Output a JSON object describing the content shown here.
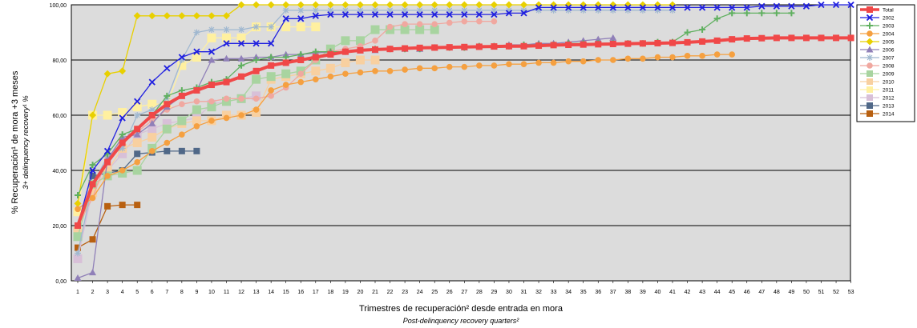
{
  "chart_data": {
    "type": "line",
    "ylabel_es": "% Recuperación¹ de mora +3 meses",
    "ylabel_en": "3+ delinquency recovery¹ %",
    "xlabel_es": "Trimestres de recuperación² desde entrada en mora",
    "xlabel_en": "Post-delinquency recovery quarters²",
    "ylim": [
      0,
      100
    ],
    "yticks": [
      "0,00",
      "20,00",
      "40,00",
      "60,00",
      "80,00",
      "100,00"
    ],
    "xlim": [
      1,
      53
    ],
    "grid": "horizontal",
    "legend_position": "right",
    "series": [
      {
        "name": "Total",
        "color": "#f04848",
        "marker": "square",
        "width": 4,
        "values": [
          20,
          35,
          43,
          50,
          55,
          60,
          64,
          67,
          69,
          71,
          72,
          74,
          76,
          78,
          79,
          80,
          81,
          82,
          83,
          83.5,
          83.8,
          84,
          84.2,
          84.4,
          84.5,
          84.6,
          84.7,
          84.8,
          84.9,
          85,
          85,
          85.2,
          85.4,
          85.5,
          85.6,
          85.7,
          85.8,
          85.9,
          86,
          86.1,
          86.2,
          86.4,
          86.7,
          87,
          87.5,
          87.8,
          87.9,
          88,
          88,
          88,
          88,
          88,
          88
        ]
      },
      {
        "name": "2002",
        "color": "#2020e0",
        "marker": "x",
        "width": 1.3,
        "values": [
          20,
          40,
          47,
          59,
          65,
          72,
          77,
          81,
          83,
          83,
          86,
          86,
          86,
          86,
          95,
          95,
          96,
          96.5,
          96.5,
          96.5,
          96.5,
          96.5,
          96.5,
          96.5,
          96.5,
          96.5,
          96.5,
          96.5,
          96.5,
          97,
          97,
          99,
          99,
          99,
          99,
          99,
          99,
          99,
          99,
          99,
          99,
          99,
          99,
          99,
          99,
          99,
          99.5,
          99.5,
          99.5,
          99.5,
          100,
          100,
          100
        ]
      },
      {
        "name": "2003",
        "color": "#60b060",
        "marker": "plus",
        "width": 1.3,
        "values": [
          31,
          42,
          46,
          53,
          55,
          60,
          67,
          69,
          70,
          72,
          73,
          78,
          80,
          81,
          81,
          82,
          83,
          83,
          83,
          83.5,
          84,
          84,
          84,
          84,
          84.5,
          84.5,
          84.5,
          85,
          85,
          85,
          85.5,
          85.5,
          85.5,
          86,
          86,
          86,
          86,
          86,
          86,
          86.5,
          86.5,
          90,
          91,
          95,
          97,
          97,
          97,
          97,
          97
        ]
      },
      {
        "name": "2004",
        "color": "#f5a040",
        "marker": "circle",
        "width": 1.3,
        "values": [
          26,
          30,
          38,
          40,
          43,
          47,
          50,
          53,
          56,
          58,
          59,
          60,
          62,
          69,
          71,
          72,
          73,
          74,
          75,
          75.5,
          76,
          76,
          76.5,
          77,
          77,
          77.5,
          77.5,
          78,
          78,
          78.5,
          78.5,
          79,
          79,
          79.5,
          79.5,
          80,
          80,
          80.5,
          80.5,
          81,
          81,
          81.5,
          81.5,
          82,
          82
        ]
      },
      {
        "name": "2005",
        "color": "#e8d000",
        "marker": "diamond",
        "width": 1.3,
        "values": [
          28,
          60,
          75,
          76,
          96,
          96,
          96,
          96,
          96,
          96,
          96,
          100,
          100,
          100,
          100,
          100,
          100,
          100,
          100,
          100,
          100,
          100,
          100,
          100,
          100,
          100,
          100,
          100,
          100,
          100,
          100,
          100,
          100,
          100,
          100,
          100,
          100,
          100,
          100,
          100,
          100
        ]
      },
      {
        "name": "2006",
        "color": "#9080b8",
        "marker": "triangle",
        "width": 1.3,
        "values": [
          1,
          3,
          44,
          52,
          53,
          57,
          63,
          67,
          69,
          80,
          80.5,
          80.5,
          81,
          81,
          82,
          82,
          82.5,
          83,
          83,
          83.5,
          83.5,
          84,
          84,
          84,
          84.5,
          84.5,
          84.5,
          85,
          85,
          85.5,
          85.5,
          86,
          86,
          86.5,
          87,
          87.5,
          88
        ]
      },
      {
        "name": "2007",
        "color": "#a0b8d0",
        "marker": "star",
        "width": 1.3,
        "values": [
          10,
          35,
          45,
          48,
          60,
          62,
          66,
          80,
          90,
          91,
          91,
          91,
          92,
          92,
          98,
          98,
          98,
          98,
          98,
          98,
          98,
          98,
          98,
          98,
          98,
          98,
          98,
          98,
          98,
          98,
          98,
          98,
          98,
          98,
          98,
          98,
          98,
          98,
          98,
          98,
          98
        ]
      },
      {
        "name": "2008",
        "color": "#f0a8a0",
        "marker": "circle",
        "width": 1.3,
        "values": [
          20,
          30,
          45,
          50,
          54,
          58,
          62,
          64,
          65,
          65,
          66,
          66,
          66,
          67,
          70,
          75,
          80,
          83,
          84,
          85,
          87,
          92,
          93,
          93,
          93,
          93.5,
          94,
          94,
          94
        ]
      },
      {
        "name": "2009",
        "color": "#a8d4a0",
        "marker": "bigsquare",
        "width": 1.3,
        "values": [
          16,
          35,
          38,
          39,
          40,
          48,
          55,
          58,
          62,
          63,
          65,
          66,
          73,
          74,
          75,
          76,
          80,
          84,
          87,
          87,
          91,
          91,
          91,
          91,
          91
        ]
      },
      {
        "name": "2010",
        "color": "#f8d0a0",
        "marker": "bigsquare",
        "width": 1.3,
        "values": [
          18,
          32,
          40,
          48,
          50,
          52,
          55,
          57,
          58,
          58,
          60,
          60,
          61,
          73,
          74,
          75,
          76,
          77,
          79,
          80,
          80
        ]
      },
      {
        "name": "2011",
        "color": "#fff0a0",
        "marker": "bigsquare",
        "width": 1.3,
        "values": [
          25,
          60,
          60,
          61,
          63,
          64,
          64,
          78,
          81,
          88,
          88,
          88,
          92,
          92,
          92,
          92,
          92
        ]
      },
      {
        "name": "2012",
        "color": "#d8c0d8",
        "marker": "bigsquare",
        "width": 1.3,
        "values": [
          8,
          33,
          40,
          46,
          53,
          55,
          57,
          58,
          59,
          64,
          65,
          66,
          67
        ]
      },
      {
        "name": "2013",
        "color": "#506888",
        "marker": "square",
        "width": 1.3,
        "values": [
          17,
          38,
          39,
          40,
          46,
          46.5,
          47,
          47,
          47
        ]
      },
      {
        "name": "2014",
        "color": "#b86010",
        "marker": "square",
        "width": 1.3,
        "values": [
          12,
          15,
          27,
          27.5,
          27.5
        ]
      }
    ]
  }
}
